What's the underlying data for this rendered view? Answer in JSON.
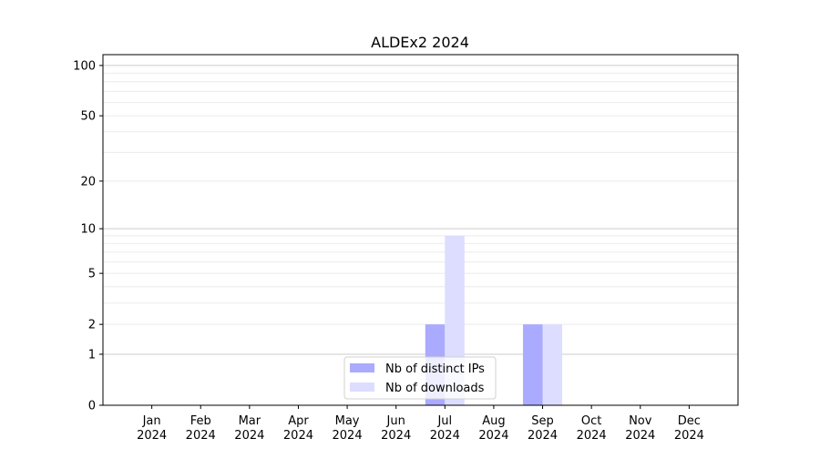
{
  "chart_data": {
    "type": "bar",
    "title": "ALDEx2 2024",
    "xlabel": "",
    "ylabel": "",
    "yscale": "symlog",
    "ylim": [
      0,
      116
    ],
    "yticks": [
      0,
      1,
      2,
      5,
      10,
      20,
      50,
      100
    ],
    "grid": true,
    "legend_position": "lower-center",
    "categories": [
      "Jan\n2024",
      "Feb\n2024",
      "Mar\n2024",
      "Apr\n2024",
      "May\n2024",
      "Jun\n2024",
      "Jul\n2024",
      "Aug\n2024",
      "Sep\n2024",
      "Oct\n2024",
      "Nov\n2024",
      "Dec\n2024"
    ],
    "series": [
      {
        "name": "Nb of distinct IPs",
        "color": "#aaaaff",
        "values": [
          0,
          0,
          0,
          0,
          0,
          0,
          2,
          0,
          2,
          0,
          0,
          0
        ]
      },
      {
        "name": "Nb of downloads",
        "color": "#ddddff",
        "values": [
          0,
          0,
          0,
          0,
          0,
          0,
          9,
          0,
          2,
          0,
          0,
          0
        ]
      }
    ]
  }
}
